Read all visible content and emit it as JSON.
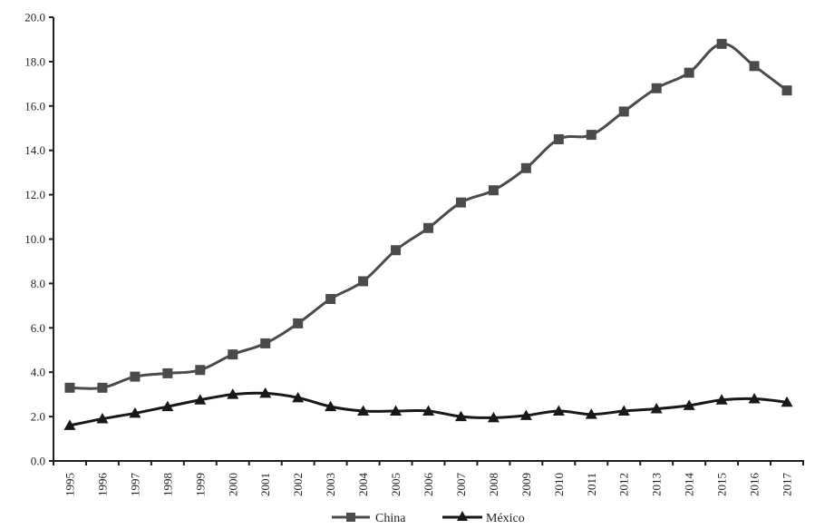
{
  "chart_data": {
    "type": "line",
    "title": "",
    "xlabel": "",
    "ylabel": "",
    "ylim": [
      0,
      20
    ],
    "yticks": [
      "0.0",
      "2.0",
      "4.0",
      "6.0",
      "8.0",
      "10.0",
      "12.0",
      "14.0",
      "16.0",
      "18.0",
      "20.0"
    ],
    "grid": false,
    "legend_position": "bottom",
    "x": [
      "1995",
      "1996",
      "1997",
      "1998",
      "1999",
      "2000",
      "2001",
      "2002",
      "2003",
      "2004",
      "2005",
      "2006",
      "2007",
      "2008",
      "2009",
      "2010",
      "2011",
      "2012",
      "2013",
      "2014",
      "2015",
      "2016",
      "2017"
    ],
    "series": [
      {
        "name": "China",
        "marker": "square",
        "color": "#4d4a4b",
        "values": [
          3.3,
          3.3,
          3.8,
          3.95,
          4.1,
          4.8,
          5.3,
          6.2,
          7.3,
          8.1,
          9.5,
          10.5,
          11.65,
          12.2,
          13.2,
          14.5,
          14.7,
          15.75,
          16.8,
          17.5,
          18.8,
          17.8,
          16.7
        ]
      },
      {
        "name": "México",
        "marker": "triangle",
        "color": "#1a1718",
        "values": [
          1.6,
          1.9,
          2.15,
          2.45,
          2.75,
          3.0,
          3.05,
          2.85,
          2.45,
          2.25,
          2.25,
          2.25,
          2.0,
          1.95,
          2.05,
          2.25,
          2.1,
          2.25,
          2.35,
          2.5,
          2.75,
          2.8,
          2.65
        ]
      }
    ]
  },
  "legend": {
    "items": [
      {
        "label": "China"
      },
      {
        "label": "México"
      }
    ]
  }
}
